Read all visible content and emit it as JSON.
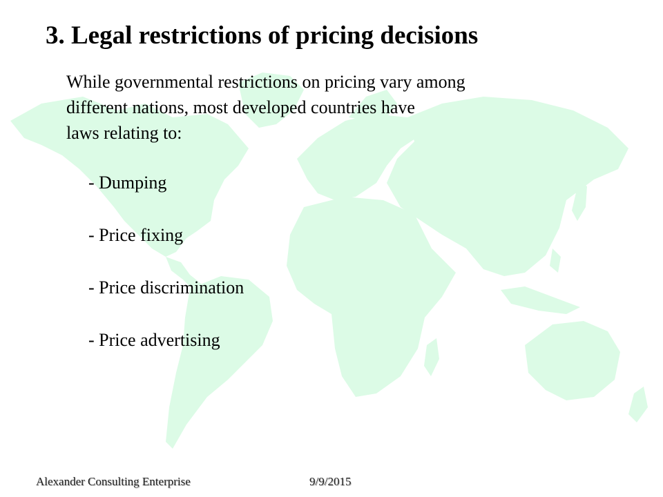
{
  "slide": {
    "title": "3. Legal restrictions of pricing decisions",
    "intro_lines": [
      "While governmental restrictions on pricing vary among",
      "different nations, most developed countries have",
      "laws relating to:"
    ],
    "bullets": [
      "- Dumping",
      "- Price fixing",
      "- Price discrimination",
      "- Price advertising"
    ]
  },
  "footer": {
    "company": "Alexander Consulting Enterprise",
    "date": "9/9/2015"
  },
  "colors": {
    "map_fill": "#dcfbe6",
    "text": "#000000"
  }
}
